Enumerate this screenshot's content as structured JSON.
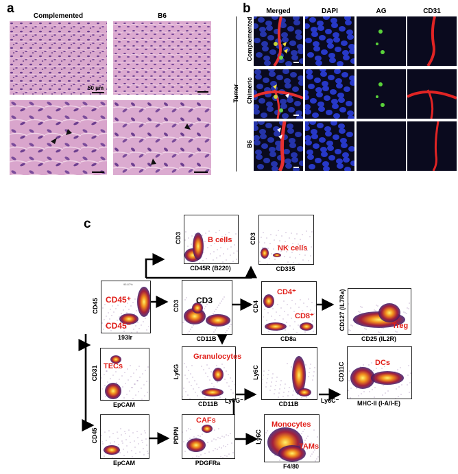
{
  "panels": {
    "a": "a",
    "b": "b",
    "c": "c"
  },
  "panel_a": {
    "col_complemented": "Complemented",
    "col_b6": "B6",
    "scale_bar": "50 μm"
  },
  "panel_b": {
    "col_merged": "Merged",
    "col_dapi": "DAPI",
    "col_ag": "AG",
    "col_cd31": "CD31",
    "group_label": "Tumor",
    "rows": [
      "Complemented",
      "Chimeric",
      "B6"
    ]
  },
  "panel_c": {
    "plots": {
      "root": {
        "ylabel": "CD45",
        "xlabel": "193lr",
        "gate1": "CD45⁺",
        "gate2": "CD45⁻",
        "pct1": "95.87%"
      },
      "bcells": {
        "ylabel": "CD3",
        "xlabel": "CD45R (B220)",
        "gate": "B cells"
      },
      "nk": {
        "ylabel": "CD3",
        "xlabel": "CD335",
        "gate": "NK cells"
      },
      "cd3": {
        "ylabel": "CD3",
        "xlabel": "CD11B",
        "gate": "CD3"
      },
      "cd4cd8": {
        "ylabel": "CD4",
        "xlabel": "CD8a",
        "gate1": "CD4⁺",
        "gate2": "CD8⁺"
      },
      "treg": {
        "ylabel": "CD127 (IL7Ra)",
        "xlabel": "CD25 (IL2R)",
        "gate": "Treg"
      },
      "tecs": {
        "ylabel": "CD31",
        "xlabel": "EpCAM",
        "gate": "TECs"
      },
      "gran": {
        "ylabel": "Ly6G",
        "xlabel": "CD11B",
        "gate": "Granulocytes"
      },
      "ly6c": {
        "ylabel": "Ly6C",
        "xlabel": "CD11B"
      },
      "dcs": {
        "ylabel": "CD11C",
        "xlabel": "MHC-II (I-A/I-E)",
        "gate": "DCs"
      },
      "cd45neg": {
        "ylabel": "CD45",
        "xlabel": "EpCAM"
      },
      "cafs": {
        "ylabel": "PDPN",
        "xlabel": "PDGFRa",
        "gate": "CAFs"
      },
      "mono": {
        "ylabel": "Ly6C",
        "xlabel": "F4/80",
        "gate1": "Monocytes",
        "gate2": "TAMs"
      }
    },
    "arrow_labels": {
      "ly6g_neg": "Ly6G⁻",
      "ly6c_neg": "Ly6C⁻"
    }
  },
  "colors": {
    "gate_red": "#e1201a",
    "histo_pink": "#d79fc6",
    "nuclei_purple": "#6a3c8c"
  }
}
